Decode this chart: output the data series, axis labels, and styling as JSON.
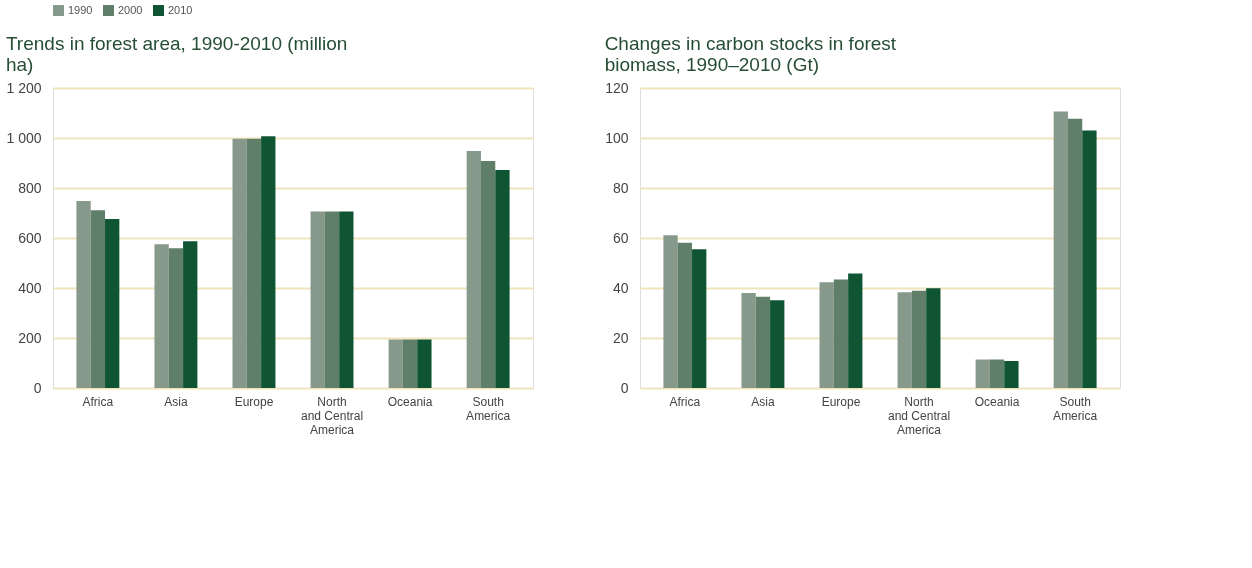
{
  "chart_data": [
    {
      "type": "bar",
      "title": "Trends in forest area, 1990-2010 (million ha)",
      "categories": [
        "Africa",
        "Asia",
        "Europe",
        "North and Central America",
        "Oceania",
        "South America"
      ],
      "series": [
        {
          "name": "1990",
          "color": "#87998a",
          "values": [
            748,
            575,
            997,
            706,
            194,
            948
          ]
        },
        {
          "name": "2000",
          "color": "#5f7f68",
          "values": [
            711,
            559,
            997,
            706,
            194,
            908
          ]
        },
        {
          "name": "2010",
          "color": "#0f5533",
          "values": [
            676,
            587,
            1007,
            706,
            194,
            872
          ]
        }
      ],
      "ylim": [
        0,
        1200
      ],
      "yticks": [
        0,
        200,
        400,
        600,
        800,
        {
          "value": 1000,
          "label": "1 000"
        },
        {
          "value": 1200,
          "label": "1 200"
        }
      ],
      "grid": "y",
      "legend": "top left"
    },
    {
      "type": "bar",
      "title": "Changes in carbon stocks in forest biomass, 1990–2010 (Gt)",
      "categories": [
        "Africa",
        "Asia",
        "Europe",
        "North and Central America",
        "Oceania",
        "South America"
      ],
      "series": [
        {
          "name": "1990",
          "color": "#87998a",
          "values": [
            61.1,
            38.0,
            42.3,
            38.3,
            11.4,
            110.6
          ]
        },
        {
          "name": "2000",
          "color": "#5f7f68",
          "values": [
            58.1,
            36.5,
            43.4,
            38.9,
            11.4,
            107.7
          ]
        },
        {
          "name": "2010",
          "color": "#0f5533",
          "values": [
            55.5,
            35.1,
            45.8,
            39.9,
            10.8,
            103.0
          ]
        }
      ],
      "ylim": [
        0,
        120
      ],
      "yticks": [
        0,
        20,
        40,
        60,
        80,
        100,
        120
      ],
      "grid": "y",
      "legend": "top right"
    }
  ]
}
